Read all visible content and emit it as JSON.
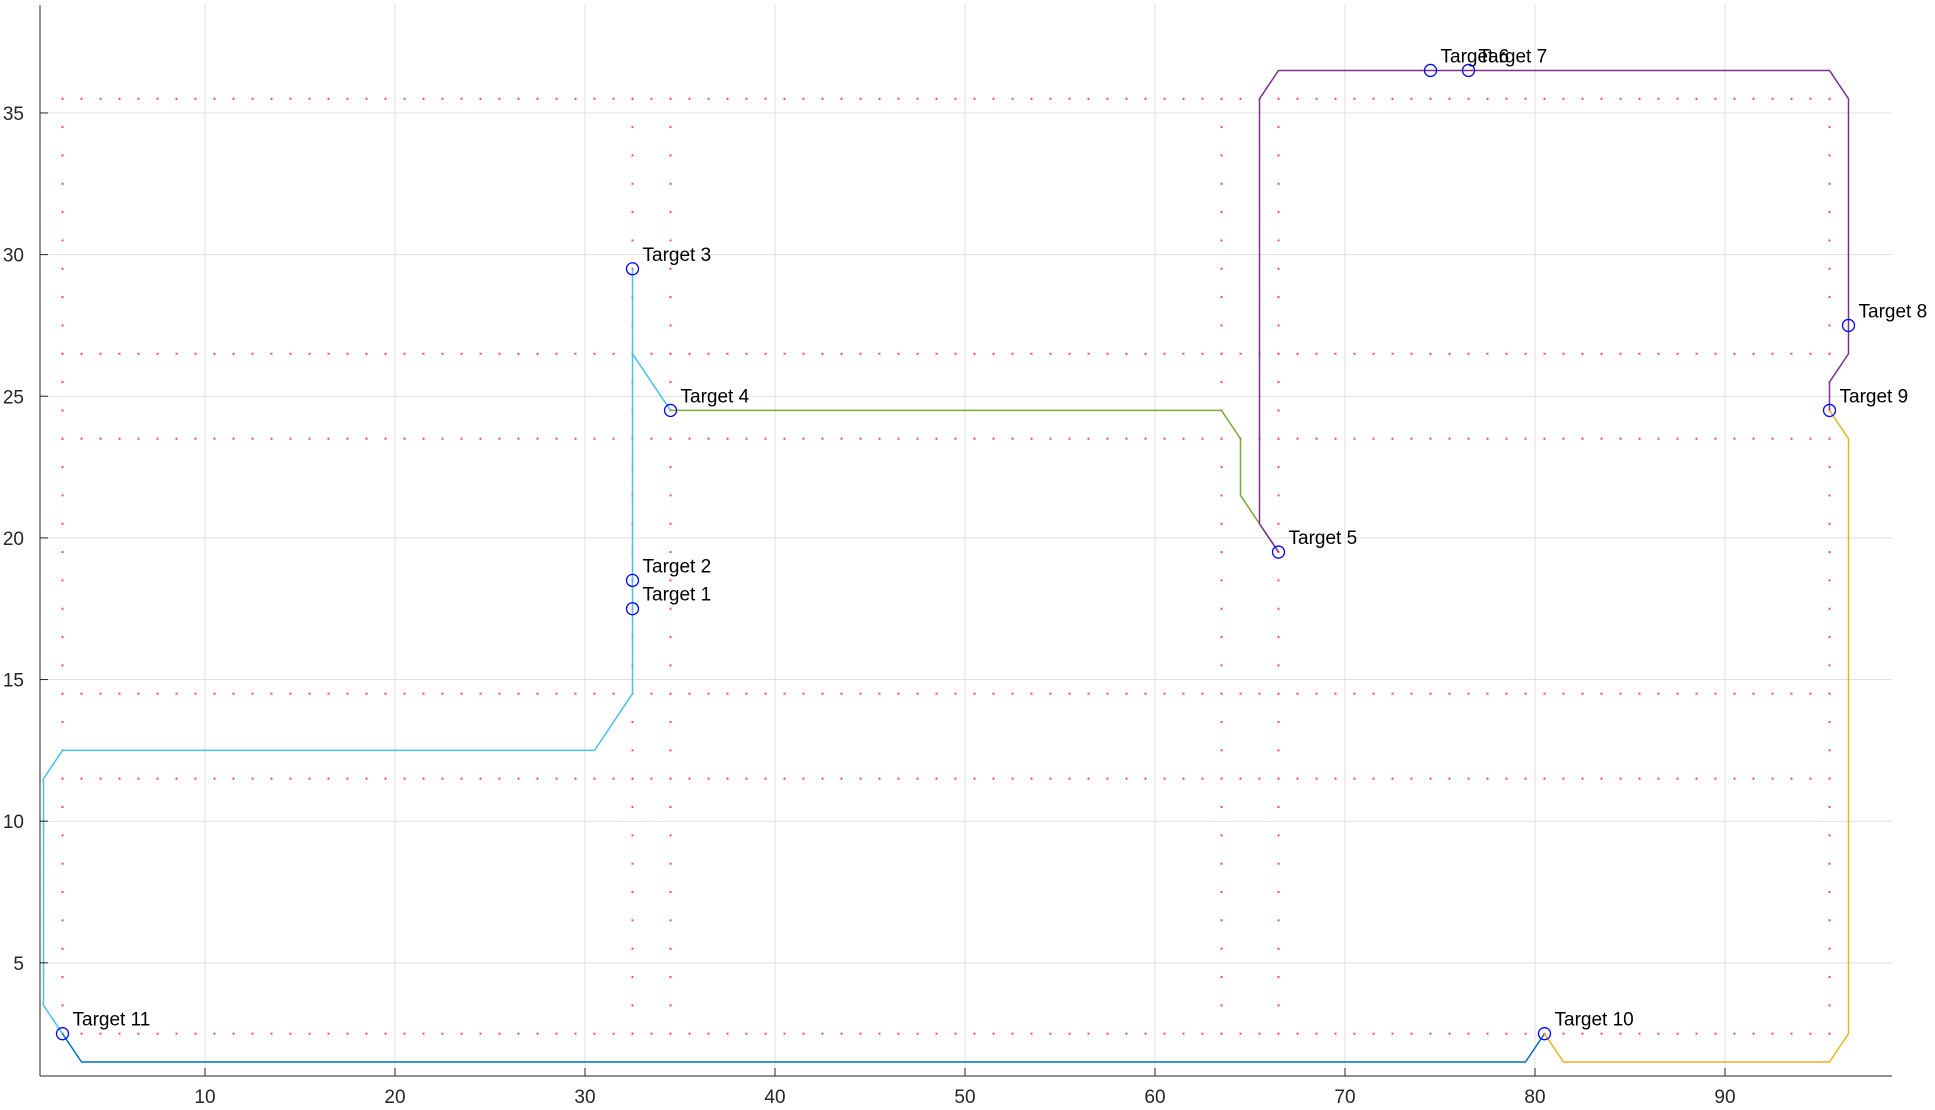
{
  "chart_data": {
    "type": "line",
    "title": "",
    "xlabel": "",
    "ylabel": "",
    "xlim": [
      0.5,
      98.5
    ],
    "ylim": [
      0.5,
      38
    ],
    "grid": true,
    "xticks": [
      10,
      20,
      30,
      40,
      50,
      60,
      70,
      80,
      90
    ],
    "yticks": [
      5,
      10,
      15,
      20,
      25,
      30,
      35
    ],
    "colors": {
      "axis": "#262626",
      "grid": "#dfdfdf",
      "dots": "#ff4d4d",
      "marker": "#0000ff",
      "cyan_path": "#4dbeee",
      "blue_path": "#0072bd",
      "green_path": "#77ac30",
      "purple_path": "#7e2f8e",
      "orange_path": "#edb120"
    },
    "targets": [
      {
        "label": "Target 1",
        "x": 32.5,
        "y": 17.5
      },
      {
        "label": "Target 2",
        "x": 32.5,
        "y": 18.5
      },
      {
        "label": "Target 3",
        "x": 32.5,
        "y": 29.5
      },
      {
        "label": "Target 4",
        "x": 34.5,
        "y": 24.5
      },
      {
        "label": "Target 5",
        "x": 66.5,
        "y": 19.5
      },
      {
        "label": "Target 6",
        "x": 74.5,
        "y": 36.5
      },
      {
        "label": "Target 7",
        "x": 76.5,
        "y": 36.5
      },
      {
        "label": "Target 8",
        "x": 96.5,
        "y": 27.5
      },
      {
        "label": "Target 9",
        "x": 95.5,
        "y": 24.5
      },
      {
        "label": "Target 10",
        "x": 80.5,
        "y": 2.5
      },
      {
        "label": "Target 11",
        "x": 2.5,
        "y": 2.5
      }
    ],
    "paths": [
      {
        "color_key": "cyan_path",
        "points": [
          [
            2.5,
            2.5
          ],
          [
            1.5,
            3.5
          ],
          [
            1.5,
            11.5
          ],
          [
            2.5,
            12.5
          ],
          [
            30.5,
            12.5
          ],
          [
            32.5,
            14.5
          ],
          [
            32.5,
            29.5
          ]
        ]
      },
      {
        "color_key": "cyan_path",
        "points": [
          [
            32.5,
            26.5
          ],
          [
            34.5,
            24.5
          ]
        ]
      },
      {
        "color_key": "blue_path",
        "points": [
          [
            2.5,
            2.5
          ],
          [
            3.5,
            1.5
          ],
          [
            79.5,
            1.5
          ],
          [
            80.5,
            2.5
          ]
        ]
      },
      {
        "color_key": "green_path",
        "points": [
          [
            34.5,
            24.5
          ],
          [
            63.5,
            24.5
          ],
          [
            64.5,
            23.5
          ],
          [
            64.5,
            21.5
          ],
          [
            66.5,
            19.5
          ]
        ]
      },
      {
        "color_key": "purple_path",
        "points": [
          [
            66.5,
            19.5
          ],
          [
            65.5,
            20.5
          ],
          [
            65.5,
            35.5
          ],
          [
            66.5,
            36.5
          ],
          [
            95.5,
            36.5
          ],
          [
            96.5,
            35.5
          ],
          [
            96.5,
            26.5
          ],
          [
            95.5,
            25.5
          ],
          [
            95.5,
            24.5
          ]
        ]
      },
      {
        "color_key": "orange_path",
        "points": [
          [
            95.5,
            24.5
          ],
          [
            96.5,
            23.5
          ],
          [
            96.5,
            2.5
          ],
          [
            95.5,
            1.5
          ],
          [
            81.5,
            1.5
          ],
          [
            80.5,
            2.5
          ]
        ]
      }
    ],
    "dot_lines": {
      "y_values": [
        2.5,
        11.5,
        14.5,
        23.5,
        26.5,
        35.5
      ],
      "x_values": [
        2.5,
        32.5,
        34.5,
        63.5,
        66.5,
        95.5
      ],
      "x_range": [
        2.5,
        95.5
      ],
      "y_range": [
        2.5,
        35.5
      ],
      "spacing": 1
    }
  }
}
